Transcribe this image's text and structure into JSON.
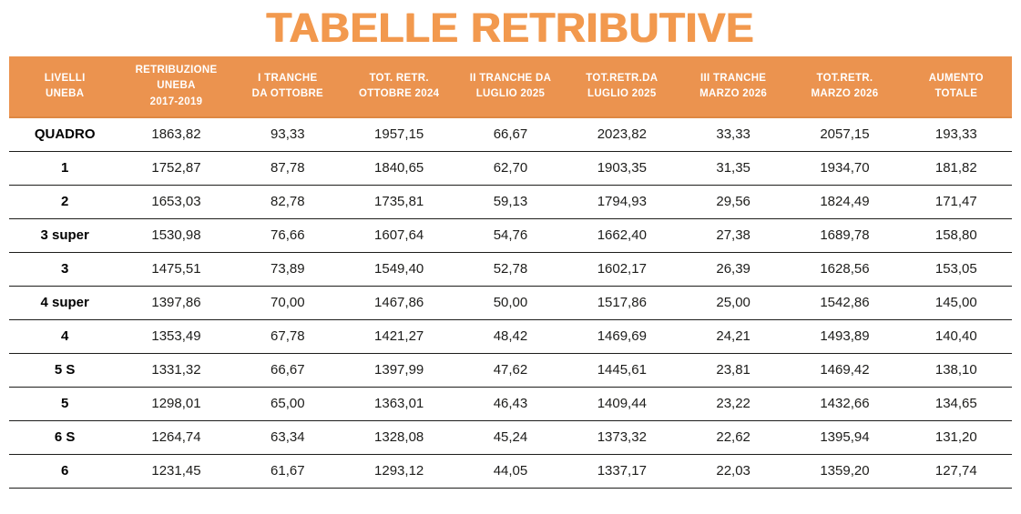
{
  "title": "TABELLE RETRIBUTIVE",
  "colors": {
    "title": "#F2994E",
    "header_bg": "#EB934F",
    "header_edge": "#DE8843",
    "header_text": "#FFFFFF",
    "row_line": "#1D1D1B",
    "text": "#1D1D1B"
  },
  "table": {
    "columns": [
      {
        "key": "livelli-uneba",
        "label": "LIVELLI\nUNEBA"
      },
      {
        "key": "retribuzione-uneba",
        "label": "RETRIBUZIONE\nUNEBA\n2017-2019"
      },
      {
        "key": "i-tranche-ottobre",
        "label": "I TRANCHE\nDA OTTOBRE"
      },
      {
        "key": "tot-retr-ottobre-2024",
        "label": "TOT. RETR.\nOTTOBRE 2024"
      },
      {
        "key": "ii-tranche-luglio-2025",
        "label": "II TRANCHE DA\nLUGLIO 2025"
      },
      {
        "key": "tot-retr-luglio-2025",
        "label": "TOT.RETR.DA\nLUGLIO 2025"
      },
      {
        "key": "iii-tranche-marzo-2026",
        "label": "III TRANCHE\nMARZO 2026"
      },
      {
        "key": "tot-retr-marzo-2026",
        "label": "TOT.RETR.\nMARZO 2026"
      },
      {
        "key": "aumento-totale",
        "label": "AUMENTO\nTOTALE"
      }
    ],
    "rows": [
      {
        "level": "QUADRO",
        "values": [
          "1863,82",
          "93,33",
          "1957,15",
          "66,67",
          "2023,82",
          "33,33",
          "2057,15",
          "193,33"
        ]
      },
      {
        "level": "1",
        "values": [
          "1752,87",
          "87,78",
          "1840,65",
          "62,70",
          "1903,35",
          "31,35",
          "1934,70",
          "181,82"
        ]
      },
      {
        "level": "2",
        "values": [
          "1653,03",
          "82,78",
          "1735,81",
          "59,13",
          "1794,93",
          "29,56",
          "1824,49",
          "171,47"
        ]
      },
      {
        "level": "3 super",
        "values": [
          "1530,98",
          "76,66",
          "1607,64",
          "54,76",
          "1662,40",
          "27,38",
          "1689,78",
          "158,80"
        ]
      },
      {
        "level": "3",
        "values": [
          "1475,51",
          "73,89",
          "1549,40",
          "52,78",
          "1602,17",
          "26,39",
          "1628,56",
          "153,05"
        ]
      },
      {
        "level": "4 super",
        "values": [
          "1397,86",
          "70,00",
          "1467,86",
          "50,00",
          "1517,86",
          "25,00",
          "1542,86",
          "145,00"
        ]
      },
      {
        "level": "4",
        "values": [
          "1353,49",
          "67,78",
          "1421,27",
          "48,42",
          "1469,69",
          "24,21",
          "1493,89",
          "140,40"
        ]
      },
      {
        "level": "5 S",
        "values": [
          "1331,32",
          "66,67",
          "1397,99",
          "47,62",
          "1445,61",
          "23,81",
          "1469,42",
          "138,10"
        ]
      },
      {
        "level": "5",
        "values": [
          "1298,01",
          "65,00",
          "1363,01",
          "46,43",
          "1409,44",
          "23,22",
          "1432,66",
          "134,65"
        ]
      },
      {
        "level": "6 S",
        "values": [
          "1264,74",
          "63,34",
          "1328,08",
          "45,24",
          "1373,32",
          "22,62",
          "1395,94",
          "131,20"
        ]
      },
      {
        "level": "6",
        "values": [
          "1231,45",
          "61,67",
          "1293,12",
          "44,05",
          "1337,17",
          "22,03",
          "1359,20",
          "127,74"
        ]
      }
    ]
  }
}
